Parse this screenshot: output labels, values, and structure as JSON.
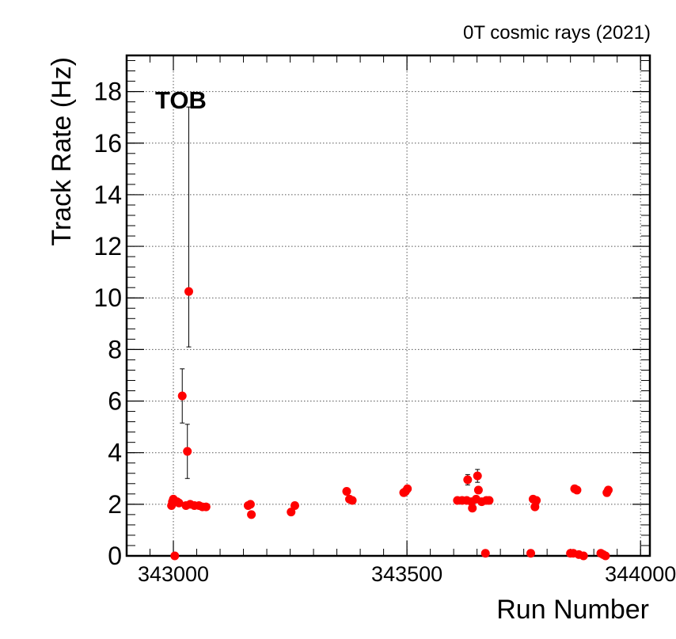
{
  "chart_data": {
    "type": "scatter",
    "title": "0T cosmic rays (2021)",
    "annotation": "TOB",
    "xlabel": "Run Number",
    "ylabel": "Track Rate (Hz)",
    "xlim": [
      342900,
      344020
    ],
    "ylim": [
      0,
      19.4
    ],
    "x_ticks": [
      343000,
      343500,
      344000
    ],
    "x_tick_labels": [
      "343000",
      "343500",
      "344000"
    ],
    "y_ticks": [
      0,
      2,
      4,
      6,
      8,
      10,
      12,
      14,
      16,
      18
    ],
    "y_tick_labels": [
      "0",
      "2",
      "4",
      "6",
      "8",
      "10",
      "12",
      "14",
      "16",
      "18"
    ],
    "grid": true,
    "marker_color": "#ff0000",
    "points": [
      {
        "x": 342996,
        "y": 1.95
      },
      {
        "x": 342998,
        "y": 2.1
      },
      {
        "x": 343000,
        "y": 2.2
      },
      {
        "x": 343003,
        "y": 0.0
      },
      {
        "x": 343008,
        "y": 2.1
      },
      {
        "x": 343012,
        "y": 2.05
      },
      {
        "x": 343019,
        "y": 6.2,
        "err": 1.05
      },
      {
        "x": 343027,
        "y": 1.95
      },
      {
        "x": 343030,
        "y": 4.05,
        "err": 1.05
      },
      {
        "x": 343033,
        "y": 10.25,
        "err_low": 2.15,
        "err_high": 7.15
      },
      {
        "x": 343036,
        "y": 2.0
      },
      {
        "x": 343045,
        "y": 1.95
      },
      {
        "x": 343055,
        "y": 1.95
      },
      {
        "x": 343062,
        "y": 1.9
      },
      {
        "x": 343070,
        "y": 1.9
      },
      {
        "x": 343160,
        "y": 1.95
      },
      {
        "x": 343165,
        "y": 2.0
      },
      {
        "x": 343167,
        "y": 1.6
      },
      {
        "x": 343252,
        "y": 1.7
      },
      {
        "x": 343260,
        "y": 1.95
      },
      {
        "x": 343371,
        "y": 2.5
      },
      {
        "x": 343377,
        "y": 2.2
      },
      {
        "x": 343383,
        "y": 2.15
      },
      {
        "x": 343493,
        "y": 2.45
      },
      {
        "x": 343497,
        "y": 2.5
      },
      {
        "x": 343501,
        "y": 2.6
      },
      {
        "x": 343608,
        "y": 2.15
      },
      {
        "x": 343618,
        "y": 2.15
      },
      {
        "x": 343628,
        "y": 2.15
      },
      {
        "x": 343630,
        "y": 2.95,
        "err": 0.2
      },
      {
        "x": 343638,
        "y": 2.1
      },
      {
        "x": 343640,
        "y": 1.85
      },
      {
        "x": 343648,
        "y": 2.2
      },
      {
        "x": 343651,
        "y": 3.1,
        "err": 0.25
      },
      {
        "x": 343653,
        "y": 2.55
      },
      {
        "x": 343660,
        "y": 2.1
      },
      {
        "x": 343668,
        "y": 0.1
      },
      {
        "x": 343670,
        "y": 2.15
      },
      {
        "x": 343676,
        "y": 2.15
      },
      {
        "x": 343765,
        "y": 0.1
      },
      {
        "x": 343770,
        "y": 2.2
      },
      {
        "x": 343774,
        "y": 1.9
      },
      {
        "x": 343777,
        "y": 2.15
      },
      {
        "x": 343850,
        "y": 0.1
      },
      {
        "x": 343856,
        "y": 0.1
      },
      {
        "x": 343859,
        "y": 2.6
      },
      {
        "x": 343864,
        "y": 2.55
      },
      {
        "x": 343868,
        "y": 0.05
      },
      {
        "x": 343878,
        "y": 0.0
      },
      {
        "x": 343915,
        "y": 0.1
      },
      {
        "x": 343920,
        "y": 0.05
      },
      {
        "x": 343925,
        "y": 0.0
      },
      {
        "x": 343928,
        "y": 2.45
      },
      {
        "x": 343931,
        "y": 2.55
      }
    ]
  }
}
